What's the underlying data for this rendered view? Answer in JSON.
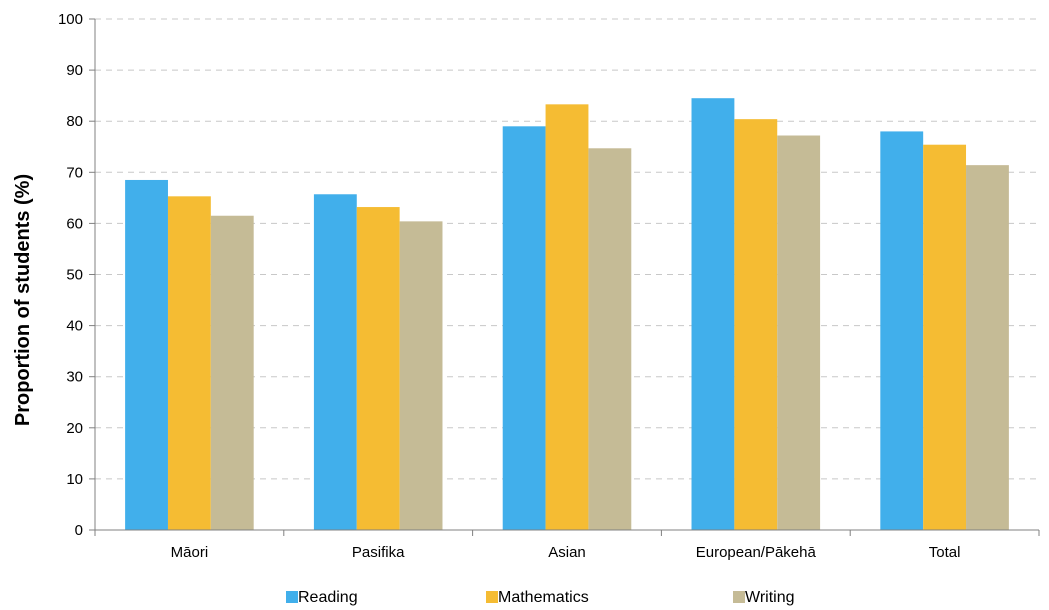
{
  "chart_data": {
    "type": "bar",
    "title": "",
    "xlabel": "",
    "ylabel": "Proportion of students (%)",
    "ylim": [
      0,
      100
    ],
    "yticks": [
      0,
      10,
      20,
      30,
      40,
      50,
      60,
      70,
      80,
      90,
      100
    ],
    "grid": true,
    "legend_position": "bottom",
    "categories": [
      "Māori",
      "Pasifika",
      "Asian",
      "European/Pākehā",
      "Total"
    ],
    "series": [
      {
        "name": "Reading",
        "color": "#41AFEB",
        "values": [
          68.5,
          65.7,
          79.0,
          84.5,
          78.0
        ]
      },
      {
        "name": "Mathematics",
        "color": "#F5BC33",
        "values": [
          65.3,
          63.2,
          83.3,
          80.4,
          75.4
        ]
      },
      {
        "name": "Writing",
        "color": "#C5BB96",
        "values": [
          61.5,
          60.4,
          74.7,
          77.2,
          71.4
        ]
      }
    ]
  }
}
